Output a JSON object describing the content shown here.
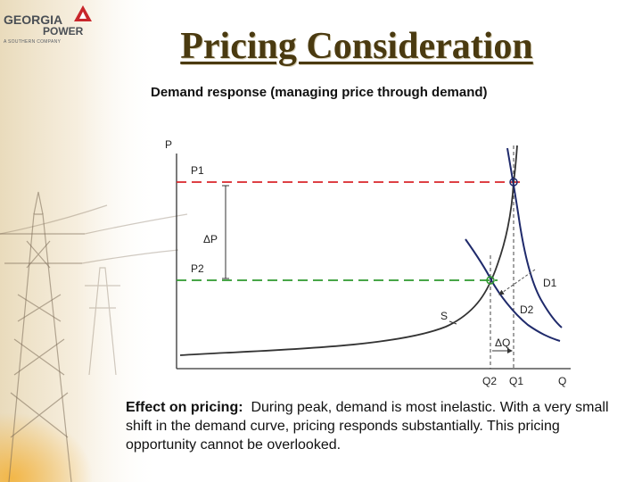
{
  "logo": {
    "line1": "GEORGIA",
    "line2": "POWER",
    "line3": "A SOUTHERN COMPANY"
  },
  "slide": {
    "title": "Pricing Consideration",
    "subtitle": "Demand response (managing price through demand)"
  },
  "diagram": {
    "axis_p": "P",
    "axis_q": "Q",
    "price_high": "P1",
    "price_low": "P2",
    "delta_p": "ΔP",
    "delta_q": "ΔQ",
    "supply": "S",
    "demand1": "D1",
    "demand2": "D2",
    "qty_low": "Q2",
    "qty_high": "Q1",
    "colors": {
      "p1_line": "#d9252a",
      "p2_line": "#2e9a2e",
      "curves": "#1f2a6b",
      "axes": "#333333"
    }
  },
  "effect": {
    "label": "Effect on pricing:",
    "text": "During peak, demand is most inelastic. With a very small shift in the demand curve, pricing responds substantially. This pricing opportunity cannot be overlooked."
  }
}
